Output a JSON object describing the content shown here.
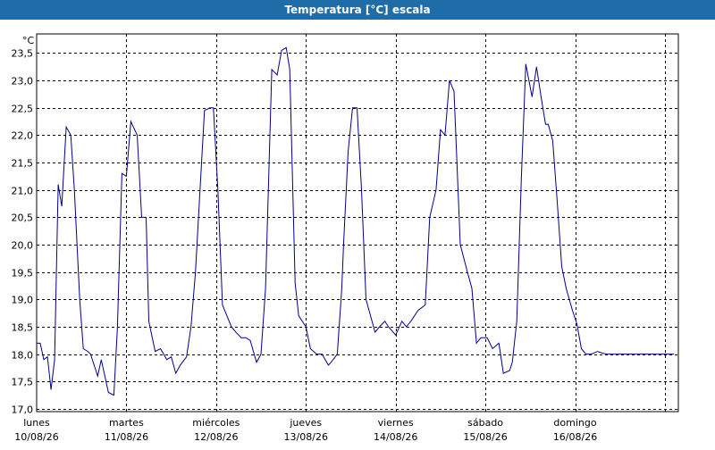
{
  "window": {
    "title": "Temperatura [°C] escala"
  },
  "chart_data": {
    "type": "line",
    "title": "Temperatura [°C] escala",
    "ylabel": "°C",
    "xlabel": "",
    "ylim": [
      16.95,
      23.85
    ],
    "xlim": [
      0,
      7.15
    ],
    "yticks": [
      17.0,
      17.5,
      18.0,
      18.5,
      19.0,
      19.5,
      20.0,
      20.5,
      21.0,
      21.5,
      22.0,
      22.5,
      23.0,
      23.5
    ],
    "ytick_labels": [
      "17,0",
      "17,5",
      "18,0",
      "18,5",
      "19,0",
      "19,5",
      "20,0",
      "20,5",
      "21,0",
      "21,5",
      "22,0",
      "22,5",
      "23,0",
      "23,5"
    ],
    "day_labels": [
      {
        "day": "lunes",
        "date": "10/08/26"
      },
      {
        "day": "martes",
        "date": "11/08/26"
      },
      {
        "day": "miércoles",
        "date": "12/08/26"
      },
      {
        "day": "jueves",
        "date": "13/08/26"
      },
      {
        "day": "viernes",
        "date": "14/08/26"
      },
      {
        "day": "sábado",
        "date": "15/08/26"
      },
      {
        "day": "domingo",
        "date": "16/08/26"
      }
    ],
    "grid": true,
    "line_color": "#00008b",
    "series": [
      {
        "x": [
          0,
          0.04,
          0.08,
          0.12,
          0.16,
          0.2,
          0.24,
          0.28,
          0.33,
          0.38,
          0.42,
          0.48,
          0.52,
          0.57,
          0.6,
          0.65,
          0.68,
          0.72,
          0.8,
          0.86,
          0.9,
          0.95,
          1.0,
          1.05,
          1.12,
          1.17,
          1.22,
          1.25,
          1.32,
          1.38,
          1.45,
          1.5,
          1.55,
          1.6,
          1.67,
          1.72,
          1.77,
          1.82,
          1.87,
          1.93,
          1.97,
          2.02,
          2.07,
          2.12,
          2.17,
          2.22,
          2.28,
          2.33,
          2.38,
          2.45,
          2.5,
          2.55,
          2.62,
          2.68,
          2.73,
          2.78,
          2.82,
          2.88,
          2.92,
          3.0,
          3.05,
          3.12,
          3.18,
          3.25,
          3.28,
          3.35,
          3.4,
          3.42,
          3.47,
          3.52,
          3.57,
          3.62,
          3.67,
          3.72,
          3.77,
          3.82,
          3.88,
          3.92,
          4.0,
          4.07,
          4.12,
          4.17,
          4.25,
          4.33,
          4.38,
          4.45,
          4.5,
          4.55,
          4.6,
          4.65,
          4.72,
          4.8,
          4.85,
          4.9,
          4.95,
          5.02,
          5.08,
          5.15,
          5.2,
          5.27,
          5.3,
          5.35,
          5.4,
          5.45,
          5.52,
          5.57,
          5.62,
          5.67,
          5.7,
          5.75,
          5.8,
          5.85,
          5.9,
          5.97,
          6.02,
          6.07,
          6.12,
          6.18,
          6.25,
          6.3,
          6.35,
          6.4,
          6.45,
          6.5,
          6.55,
          6.6,
          6.65,
          6.7,
          6.75,
          6.8,
          6.87,
          6.92,
          6.97,
          7.02,
          7.05,
          7.1
        ],
        "values": [
          18.2,
          18.2,
          17.9,
          17.95,
          17.35,
          17.9,
          21.1,
          20.7,
          22.15,
          22.0,
          21.0,
          19.0,
          18.1,
          18.05,
          18.0,
          17.75,
          17.6,
          17.9,
          17.3,
          17.25,
          18.5,
          21.3,
          21.25,
          22.25,
          22.0,
          20.5,
          20.5,
          18.6,
          18.05,
          18.1,
          17.9,
          17.95,
          17.65,
          17.8,
          17.95,
          18.5,
          19.5,
          21.0,
          22.45,
          22.5,
          22.5,
          21.0,
          18.9,
          18.7,
          18.5,
          18.4,
          18.3,
          18.3,
          18.25,
          17.85,
          18.0,
          19.2,
          23.2,
          23.1,
          23.55,
          23.6,
          23.2,
          19.3,
          18.7,
          18.5,
          18.1,
          18.0,
          18.0,
          17.8,
          17.85,
          18.0,
          19.2,
          20.0,
          21.7,
          22.5,
          22.5,
          21.0,
          19.0,
          18.7,
          18.4,
          18.5,
          18.6,
          18.5,
          18.35,
          18.6,
          18.5,
          18.6,
          18.8,
          18.9,
          20.5,
          21.0,
          22.1,
          22.0,
          23.0,
          22.8,
          20.0,
          19.5,
          19.2,
          18.2,
          18.3,
          18.3,
          18.1,
          18.2,
          17.65,
          17.7,
          17.85,
          18.6,
          21.2,
          23.3,
          22.7,
          23.25,
          22.7,
          22.2,
          22.2,
          21.9,
          20.8,
          19.6,
          19.2,
          18.8,
          18.55,
          18.1,
          18.0,
          18.0,
          18.05,
          18.02,
          18.0,
          18.0,
          18.0,
          18.0,
          18.0,
          18.0,
          18.0,
          18.0,
          18.0,
          18.0,
          18.0,
          18.0,
          18.0,
          18.0,
          18.0,
          18.0
        ]
      }
    ]
  }
}
